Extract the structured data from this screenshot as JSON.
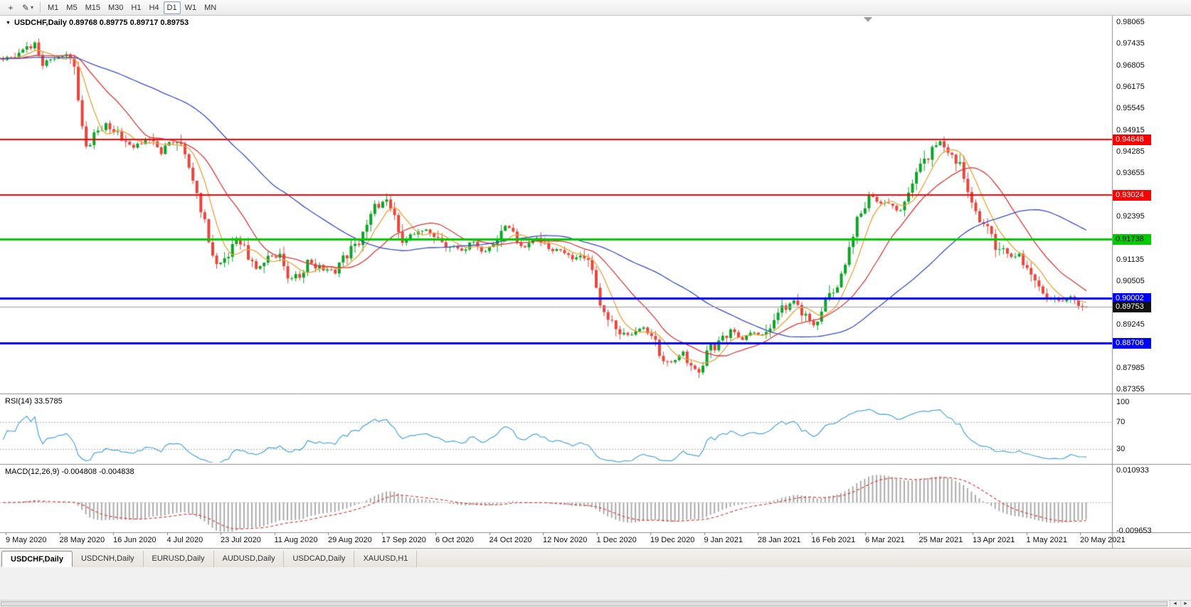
{
  "toolbar": {
    "timeframes": [
      "M1",
      "M5",
      "M15",
      "M30",
      "H1",
      "H4",
      "D1",
      "W1",
      "MN"
    ],
    "active_timeframe": "D1"
  },
  "icons": {
    "collapse_triangle": "▼",
    "crosshair": "+",
    "pencil": "✎",
    "caret": "▾",
    "scroll_left": "◄",
    "scroll_right": "►"
  },
  "header": {
    "text": "USDCHF,Daily 0.89768 0.89775 0.89717 0.89753"
  },
  "indicators": {
    "rsi": {
      "label": "RSI(14) 33.5785",
      "period": 14,
      "current_value": 33.5785,
      "levels": [
        70,
        30
      ],
      "scale_ticks": [
        100,
        70,
        30
      ]
    },
    "macd": {
      "label": "MACD(12,26,9) -0.004808 -0.004838",
      "fast": 12,
      "slow": 26,
      "signal_period": 9,
      "macd_value": -0.004808,
      "signal_value": -0.004838,
      "scale_ticks": [
        0.010933,
        -0.009653
      ]
    }
  },
  "price_scale": {
    "ticks": [
      0.98065,
      0.97435,
      0.96805,
      0.96175,
      0.95545,
      0.94915,
      0.94285,
      0.93655,
      0.92395,
      0.91135,
      0.90505,
      0.89245,
      0.87985,
      0.87355
    ]
  },
  "levels": [
    {
      "value": 0.94648,
      "color": "#FF0000",
      "thickness": 2,
      "text_color": "#FFFFFF"
    },
    {
      "value": 0.93024,
      "color": "#FF0000",
      "thickness": 2,
      "text_color": "#FFFFFF"
    },
    {
      "value": 0.91738,
      "color": "#00CC00",
      "thickness": 3,
      "text_color": "#000000"
    },
    {
      "value": 0.90002,
      "color": "#0000FF",
      "thickness": 3,
      "text_color": "#FFFFFF"
    },
    {
      "value": 0.88706,
      "color": "#0000FF",
      "thickness": 3,
      "text_color": "#FFFFFF"
    }
  ],
  "bid": {
    "value": 0.89753,
    "badge_bg": "#111111",
    "text_color": "#FFFFFF"
  },
  "tabs": {
    "items": [
      "USDCHF,Daily",
      "USDCNH,Daily",
      "EURUSD,Daily",
      "AUDUSD,Daily",
      "USDCAD,Daily",
      "XAUUSD,H1"
    ],
    "active": "USDCHF,Daily"
  },
  "colors": {
    "up_candle": "#0DA327",
    "down_candle": "#E8453C",
    "ma_fast": "#E8A33D",
    "ma_mid": "#D63A3A",
    "ma_slow": "#3A4FC4",
    "rsi_line": "#4AA4DE",
    "macd_histogram": "#ABABAB",
    "macd_signal": "#D84040",
    "level_dash": "#B4B4B4",
    "bid_line": "#9B9B9B"
  },
  "chart_data": {
    "type": "candlestick",
    "symbol": "USDCHF",
    "timeframe": "Daily",
    "title": "USDCHF,Daily",
    "last_bar": {
      "open": 0.89768,
      "high": 0.89775,
      "low": 0.89717,
      "close": 0.89753
    },
    "y_axis": {
      "min": 0.87355,
      "max": 0.98065,
      "tick_step": 0.0063
    },
    "x_tick_labels": [
      "9 May 2020",
      "28 May 2020",
      "16 Jun 2020",
      "4 Jul 2020",
      "23 Jul 2020",
      "11 Aug 2020",
      "29 Aug 2020",
      "17 Sep 2020",
      "6 Oct 2020",
      "24 Oct 2020",
      "12 Nov 2020",
      "1 Dec 2020",
      "19 Dec 2020",
      "9 Jan 2021",
      "28 Jan 2021",
      "16 Feb 2021",
      "6 Mar 2021",
      "25 Mar 2021",
      "13 Apr 2021",
      "1 May 2021",
      "20 May 2021"
    ],
    "visible_bars": 274,
    "horizontal_lines": [
      0.94648,
      0.93024,
      0.91738,
      0.90002,
      0.88706
    ],
    "moving_averages": [
      {
        "period": 7,
        "color_key": "ma_fast"
      },
      {
        "period": 18,
        "color_key": "ma_mid"
      },
      {
        "period": 50,
        "color_key": "ma_slow"
      }
    ],
    "indicator_panels": [
      "RSI(14)",
      "MACD(12,26,9)"
    ],
    "close_path_anchors": [
      [
        0,
        0.97
      ],
      [
        4,
        0.9722
      ],
      [
        7,
        0.9738
      ],
      [
        9,
        0.9692
      ],
      [
        12,
        0.97
      ],
      [
        15,
        0.9712
      ],
      [
        17,
        0.966
      ],
      [
        20,
        0.9432
      ],
      [
        22,
        0.9478
      ],
      [
        25,
        0.9512
      ],
      [
        28,
        0.948
      ],
      [
        32,
        0.9442
      ],
      [
        35,
        0.9465
      ],
      [
        39,
        0.9428
      ],
      [
        41,
        0.9462
      ],
      [
        44,
        0.9445
      ],
      [
        46,
        0.938
      ],
      [
        48,
        0.9292
      ],
      [
        51,
        0.918
      ],
      [
        53,
        0.9098
      ],
      [
        55,
        0.9112
      ],
      [
        58,
        0.9175
      ],
      [
        61,
        0.9125
      ],
      [
        63,
        0.9082
      ],
      [
        66,
        0.913
      ],
      [
        69,
        0.9115
      ],
      [
        71,
        0.9052
      ],
      [
        74,
        0.9066
      ],
      [
        76,
        0.9112
      ],
      [
        79,
        0.909
      ],
      [
        83,
        0.908
      ],
      [
        85,
        0.9115
      ],
      [
        88,
        0.9148
      ],
      [
        91,
        0.921
      ],
      [
        93,
        0.9268
      ],
      [
        96,
        0.929
      ],
      [
        98,
        0.924
      ],
      [
        100,
        0.9172
      ],
      [
        103,
        0.9185
      ],
      [
        106,
        0.9205
      ],
      [
        110,
        0.9165
      ],
      [
        112,
        0.915
      ],
      [
        115,
        0.914
      ],
      [
        118,
        0.9165
      ],
      [
        121,
        0.9135
      ],
      [
        123,
        0.915
      ],
      [
        126,
        0.9215
      ],
      [
        128,
        0.9185
      ],
      [
        131,
        0.9152
      ],
      [
        134,
        0.918
      ],
      [
        137,
        0.9136
      ],
      [
        139,
        0.9146
      ],
      [
        142,
        0.9122
      ],
      [
        145,
        0.9118
      ],
      [
        148,
        0.9086
      ],
      [
        150,
        0.8992
      ],
      [
        153,
        0.8926
      ],
      [
        155,
        0.8906
      ],
      [
        158,
        0.8892
      ],
      [
        161,
        0.8916
      ],
      [
        164,
        0.8866
      ],
      [
        166,
        0.8832
      ],
      [
        169,
        0.8812
      ],
      [
        171,
        0.8846
      ],
      [
        173,
        0.8802
      ],
      [
        175,
        0.8786
      ],
      [
        178,
        0.8858
      ],
      [
        180,
        0.8868
      ],
      [
        183,
        0.8905
      ],
      [
        186,
        0.8882
      ],
      [
        188,
        0.8902
      ],
      [
        191,
        0.8888
      ],
      [
        193,
        0.8925
      ],
      [
        196,
        0.8972
      ],
      [
        199,
        0.8992
      ],
      [
        201,
        0.8958
      ],
      [
        204,
        0.8922
      ],
      [
        207,
        0.8985
      ],
      [
        209,
        0.903
      ],
      [
        212,
        0.9085
      ],
      [
        215,
        0.9235
      ],
      [
        218,
        0.93
      ],
      [
        220,
        0.9286
      ],
      [
        223,
        0.9278
      ],
      [
        226,
        0.9252
      ],
      [
        228,
        0.932
      ],
      [
        231,
        0.9378
      ],
      [
        234,
        0.9432
      ],
      [
        236,
        0.9456
      ],
      [
        238,
        0.942
      ],
      [
        241,
        0.9392
      ],
      [
        245,
        0.9252
      ],
      [
        248,
        0.9205
      ],
      [
        250,
        0.9158
      ],
      [
        253,
        0.9132
      ],
      [
        256,
        0.9118
      ],
      [
        258,
        0.9092
      ],
      [
        261,
        0.9042
      ],
      [
        263,
        0.9012
      ],
      [
        266,
        0.8992
      ],
      [
        269,
        0.9002
      ],
      [
        271,
        0.8972
      ],
      [
        273,
        0.8975
      ]
    ]
  }
}
